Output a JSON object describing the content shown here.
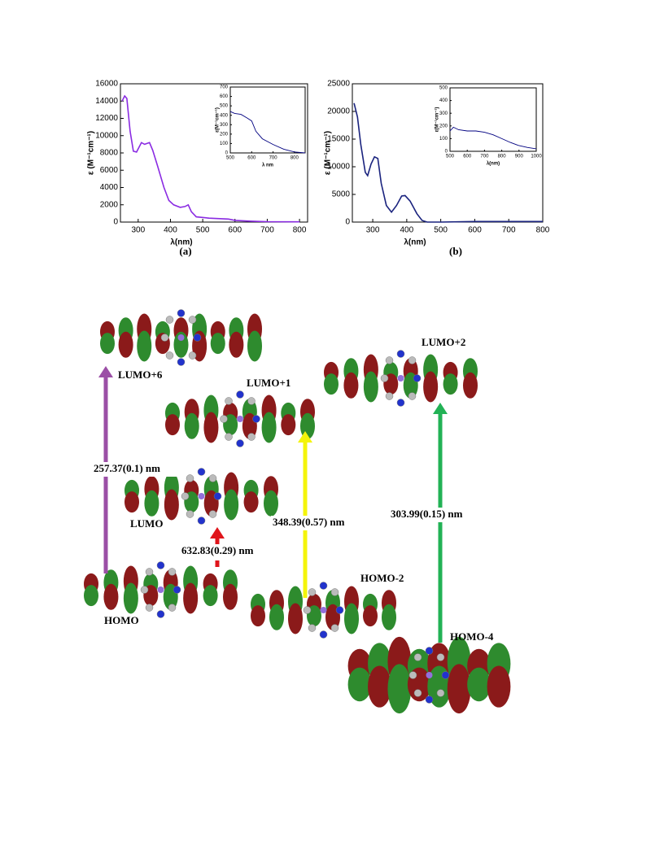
{
  "chart_data": [
    {
      "type": "line",
      "panel_label": "(a)",
      "x_label": "λ(nm)",
      "y_label": "ε (M⁻¹cm⁻¹)",
      "color": "#8a2be2",
      "x": [
        250,
        258,
        265,
        275,
        285,
        295,
        310,
        320,
        335,
        345,
        360,
        380,
        395,
        410,
        430,
        445,
        455,
        465,
        480,
        520,
        580,
        600,
        650,
        700,
        800
      ],
      "values": [
        14000,
        14600,
        14300,
        10500,
        8200,
        8100,
        9200,
        9000,
        9200,
        8300,
        6500,
        4000,
        2500,
        2000,
        1700,
        1800,
        2000,
        1200,
        600,
        450,
        350,
        200,
        100,
        50,
        30
      ],
      "xlim": [
        245,
        825
      ],
      "xticks": [
        300,
        400,
        500,
        600,
        700,
        800
      ],
      "ylim": [
        0,
        16000
      ],
      "yticks": [
        0,
        2000,
        4000,
        6000,
        8000,
        10000,
        12000,
        14000,
        16000
      ]
    },
    {
      "type": "line",
      "x_label": "λ nm",
      "y_label": "ε(M⁻¹cm⁻¹)",
      "color": "#000080",
      "x": [
        500,
        520,
        550,
        580,
        600,
        620,
        650,
        700,
        750,
        800,
        850
      ],
      "values": [
        440,
        420,
        410,
        370,
        340,
        230,
        150,
        90,
        40,
        10,
        0
      ],
      "xlim": [
        500,
        850
      ],
      "xticks": [
        500,
        600,
        700,
        800
      ],
      "ylim": [
        0,
        700
      ],
      "yticks": [
        0,
        100,
        200,
        300,
        400,
        500,
        600,
        700
      ]
    },
    {
      "type": "line",
      "panel_label": "(b)",
      "x_label": "λ(nm)",
      "y_label": "ε (M⁻¹cm⁻¹)",
      "color": "#1a237e",
      "x": [
        245,
        255,
        265,
        278,
        285,
        295,
        305,
        315,
        325,
        340,
        355,
        370,
        385,
        395,
        410,
        430,
        445,
        460,
        500,
        600,
        800
      ],
      "values": [
        21500,
        19000,
        14000,
        9000,
        8400,
        10500,
        11800,
        11500,
        7000,
        3000,
        1800,
        3000,
        4700,
        4800,
        3800,
        1500,
        300,
        0,
        0,
        100,
        100
      ],
      "xlim": [
        240,
        800
      ],
      "xticks": [
        300,
        400,
        500,
        600,
        700,
        800
      ],
      "ylim": [
        0,
        25000
      ],
      "yticks": [
        0,
        5000,
        10000,
        15000,
        20000,
        25000
      ]
    },
    {
      "type": "line",
      "x_label": "λ(nm)",
      "y_label": "ε(M⁻¹cm⁻¹)",
      "color": "#000080",
      "x": [
        500,
        520,
        550,
        600,
        650,
        700,
        750,
        800,
        850,
        900,
        950,
        1000
      ],
      "values": [
        160,
        190,
        170,
        160,
        160,
        150,
        130,
        100,
        70,
        45,
        30,
        20
      ],
      "xlim": [
        500,
        1000
      ],
      "xticks": [
        500,
        600,
        700,
        800,
        900,
        1000
      ],
      "ylim": [
        0,
        500
      ],
      "yticks": [
        0,
        100,
        200,
        300,
        400,
        500
      ]
    }
  ],
  "diagram": {
    "orbitals": [
      {
        "label": "LUMO+6"
      },
      {
        "label": "LUMO+1"
      },
      {
        "label": "LUMO+2"
      },
      {
        "label": "LUMO"
      },
      {
        "label": "HOMO"
      },
      {
        "label": "HOMO-2"
      },
      {
        "label": "HOMO-4"
      }
    ],
    "transitions": [
      {
        "label": "257.37(0.1) nm"
      },
      {
        "label": "632.83(0.29) nm"
      },
      {
        "label": "348.39(0.57) nm"
      },
      {
        "label": "303.99(0.15) nm"
      }
    ]
  }
}
